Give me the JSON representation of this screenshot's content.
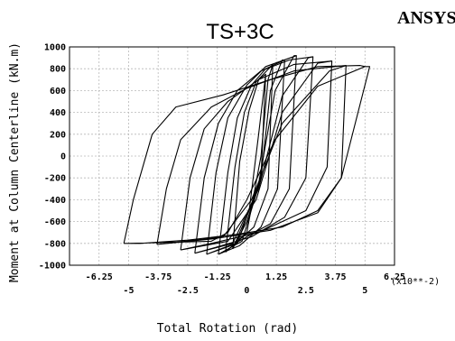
{
  "logo": "ANSYS",
  "chart_data": {
    "type": "line",
    "title": "TS+3C",
    "xlabel": "Total Rotation (rad)",
    "ylabel": "Moment at Column Centerline (kN.m)",
    "x_multiplier_label": "(x10**-2)",
    "xlim": [
      -7.5,
      6.25
    ],
    "ylim": [
      -1000,
      1000
    ],
    "grid": true,
    "x_ticks_upper": [
      "-6.25",
      "-3.75",
      "-1.25",
      "1.25",
      "3.75",
      "6.25"
    ],
    "x_ticks_upper_values": [
      -6.25,
      -3.75,
      -1.25,
      1.25,
      3.75,
      6.25
    ],
    "x_ticks_lower": [
      "-5",
      "-2.5",
      "0",
      "2.5",
      "5"
    ],
    "x_ticks_lower_values": [
      -5,
      -2.5,
      0,
      2.5,
      5
    ],
    "y_ticks": [
      "1000",
      "800",
      "600",
      "400",
      "200",
      "0",
      "-200",
      "-400",
      "-600",
      "-800",
      "-1000"
    ],
    "y_tick_values": [
      1000,
      800,
      600,
      400,
      200,
      0,
      -200,
      -400,
      -600,
      -800,
      -1000
    ],
    "series": [
      {
        "values": [
          [
            -5.0,
            -800
          ],
          [
            -1.5,
            -780
          ],
          [
            -0.8,
            -700
          ],
          [
            0.0,
            -400
          ],
          [
            1.2,
            150
          ],
          [
            3.0,
            640
          ],
          [
            5.0,
            820
          ],
          [
            5.2,
            820
          ],
          [
            4.0,
            -200
          ],
          [
            3.0,
            -500
          ],
          [
            1.5,
            -650
          ],
          [
            -0.5,
            -720
          ],
          [
            -2.5,
            -770
          ],
          [
            -4.5,
            -800
          ],
          [
            -5.2,
            -800
          ]
        ]
      },
      {
        "values": [
          [
            -5.2,
            -800
          ],
          [
            -4.8,
            -400
          ],
          [
            -4.0,
            200
          ],
          [
            -3.0,
            450
          ],
          [
            -1.0,
            560
          ],
          [
            1.0,
            700
          ],
          [
            3.0,
            820
          ],
          [
            4.8,
            830
          ],
          [
            5.0,
            820
          ]
        ]
      },
      {
        "values": [
          [
            -3.8,
            -810
          ],
          [
            -1.0,
            -740
          ],
          [
            0.2,
            -400
          ],
          [
            1.5,
            300
          ],
          [
            3.5,
            780
          ],
          [
            4.2,
            830
          ],
          [
            4.0,
            -200
          ],
          [
            3.0,
            -520
          ],
          [
            1.0,
            -680
          ],
          [
            -1.5,
            -760
          ],
          [
            -3.8,
            -810
          ]
        ]
      },
      {
        "values": [
          [
            -3.8,
            -810
          ],
          [
            -3.4,
            -300
          ],
          [
            -2.8,
            150
          ],
          [
            -1.5,
            450
          ],
          [
            0.0,
            620
          ],
          [
            2.0,
            780
          ],
          [
            4.2,
            830
          ]
        ]
      },
      {
        "values": [
          [
            -2.8,
            -860
          ],
          [
            -0.8,
            -780
          ],
          [
            0.4,
            -400
          ],
          [
            1.5,
            400
          ],
          [
            3.0,
            850
          ],
          [
            3.6,
            870
          ],
          [
            3.4,
            -100
          ],
          [
            2.5,
            -500
          ],
          [
            0.5,
            -700
          ],
          [
            -1.5,
            -800
          ],
          [
            -2.8,
            -860
          ]
        ]
      },
      {
        "values": [
          [
            -2.8,
            -860
          ],
          [
            -2.4,
            -200
          ],
          [
            -1.8,
            250
          ],
          [
            -0.8,
            500
          ],
          [
            0.5,
            700
          ],
          [
            2.0,
            840
          ],
          [
            3.6,
            870
          ]
        ]
      },
      {
        "values": [
          [
            -2.2,
            -890
          ],
          [
            -0.6,
            -800
          ],
          [
            0.5,
            -300
          ],
          [
            1.5,
            550
          ],
          [
            2.6,
            900
          ],
          [
            2.8,
            910
          ],
          [
            2.5,
            -200
          ],
          [
            1.6,
            -560
          ],
          [
            0.2,
            -740
          ],
          [
            -1.2,
            -830
          ],
          [
            -2.2,
            -890
          ]
        ]
      },
      {
        "values": [
          [
            -2.2,
            -890
          ],
          [
            -1.8,
            -200
          ],
          [
            -1.2,
            300
          ],
          [
            -0.4,
            600
          ],
          [
            0.6,
            780
          ],
          [
            1.8,
            880
          ],
          [
            2.8,
            910
          ]
        ]
      },
      {
        "values": [
          [
            -1.7,
            -900
          ],
          [
            -0.4,
            -800
          ],
          [
            0.5,
            -250
          ],
          [
            1.2,
            600
          ],
          [
            2.0,
            920
          ],
          [
            2.1,
            920
          ],
          [
            1.8,
            -300
          ],
          [
            1.0,
            -620
          ],
          [
            -0.5,
            -800
          ],
          [
            -1.7,
            -900
          ]
        ]
      },
      {
        "values": [
          [
            -1.7,
            -900
          ],
          [
            -1.3,
            -150
          ],
          [
            -0.8,
            350
          ],
          [
            0.0,
            650
          ],
          [
            0.8,
            820
          ],
          [
            2.1,
            920
          ]
        ]
      },
      {
        "values": [
          [
            -1.2,
            -900
          ],
          [
            -0.2,
            -780
          ],
          [
            0.6,
            -200
          ],
          [
            1.0,
            600
          ],
          [
            1.5,
            880
          ],
          [
            1.6,
            880
          ],
          [
            1.3,
            -300
          ],
          [
            0.6,
            -650
          ],
          [
            -0.3,
            -820
          ],
          [
            -1.2,
            -900
          ]
        ]
      },
      {
        "values": [
          [
            -1.2,
            -900
          ],
          [
            -0.8,
            -150
          ],
          [
            -0.4,
            350
          ],
          [
            0.2,
            650
          ],
          [
            0.8,
            800
          ],
          [
            1.6,
            880
          ]
        ]
      },
      {
        "values": [
          [
            -0.9,
            -880
          ],
          [
            0.0,
            -700
          ],
          [
            0.6,
            0
          ],
          [
            0.9,
            700
          ],
          [
            1.1,
            840
          ],
          [
            0.9,
            -300
          ],
          [
            0.3,
            -650
          ],
          [
            -0.9,
            -880
          ]
        ]
      },
      {
        "values": [
          [
            -0.9,
            -880
          ],
          [
            -0.5,
            -100
          ],
          [
            -0.1,
            400
          ],
          [
            0.4,
            680
          ],
          [
            1.1,
            840
          ]
        ]
      },
      {
        "values": [
          [
            -0.6,
            -850
          ],
          [
            0.1,
            -500
          ],
          [
            0.5,
            200
          ],
          [
            0.8,
            750
          ],
          [
            0.6,
            -200
          ],
          [
            0.0,
            -600
          ],
          [
            -0.6,
            -850
          ]
        ]
      },
      {
        "values": [
          [
            -0.6,
            -850
          ],
          [
            -0.3,
            -50
          ],
          [
            0.1,
            420
          ],
          [
            0.5,
            700
          ],
          [
            0.8,
            750
          ]
        ]
      }
    ]
  }
}
